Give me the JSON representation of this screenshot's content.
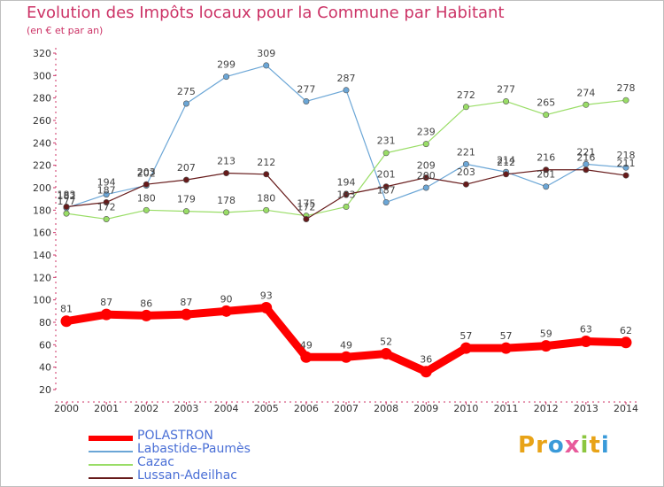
{
  "title": "Evolution des Impôts locaux pour la Commune par Habitant",
  "subtitle": "(en € et par an)",
  "logo": {
    "text": "Proxiti",
    "letters": [
      "P",
      "r",
      "o",
      "x",
      "i",
      "t",
      "i"
    ],
    "colors": [
      "#e8a317",
      "#e8a317",
      "#3a9ad9",
      "#e85a9b",
      "#8cc63f",
      "#e8a317",
      "#3a9ad9"
    ]
  },
  "colors": {
    "accent": "#cc3366",
    "legend_text": "#4a6fd6",
    "axis": "#333333"
  },
  "chart_data": {
    "type": "line",
    "title": "Evolution des Impôts locaux pour la Commune par Habitant",
    "subtitle": "(en € et par an)",
    "xlabel": "",
    "ylabel": "",
    "ylim": [
      20,
      320
    ],
    "ytick_step": 20,
    "yticks": [
      "20",
      "40",
      "60",
      "80",
      "100",
      "120",
      "140",
      "160",
      "180",
      "200",
      "220",
      "240",
      "260",
      "280",
      "300",
      "320"
    ],
    "categories": [
      "2000",
      "2001",
      "2002",
      "2003",
      "2004",
      "2005",
      "2006",
      "2007",
      "2008",
      "2009",
      "2010",
      "2011",
      "2012",
      "2013",
      "2014"
    ],
    "grid": false,
    "legend_position": "bottom-left",
    "series": [
      {
        "name": "POLASTRON",
        "color": "#ff0000",
        "values": [
          81,
          87,
          86,
          87,
          90,
          93,
          49,
          49,
          52,
          36,
          57,
          57,
          59,
          63,
          62
        ],
        "labels": [
          "81",
          "87",
          "86",
          "87",
          "90",
          "93",
          "49",
          "49",
          "52",
          "36",
          "57",
          "57",
          "59",
          "63",
          "62"
        ]
      },
      {
        "name": "Labastide-Paumès",
        "color": "#6ba6d6",
        "values": [
          182,
          194,
          202,
          275,
          299,
          309,
          277,
          287,
          187,
          200,
          221,
          214,
          201,
          221,
          218
        ],
        "labels": [
          "182",
          "194",
          "202",
          "275",
          "299",
          "309",
          "277",
          "287",
          "187",
          "200",
          "221",
          "214",
          "201",
          "221",
          "218"
        ]
      },
      {
        "name": "Cazac",
        "color": "#99dd66",
        "values": [
          177,
          172,
          180,
          179,
          178,
          180,
          175,
          183,
          231,
          239,
          272,
          277,
          265,
          274,
          278
        ],
        "labels": [
          "177",
          "172",
          "180",
          "179",
          "178",
          "180",
          "175",
          "183",
          "231",
          "239",
          "272",
          "277",
          "265",
          "274",
          "278"
        ]
      },
      {
        "name": "Lussan-Adeilhac",
        "color": "#661a1a",
        "values": [
          183,
          187,
          203,
          207,
          213,
          212,
          172,
          194,
          201,
          209,
          203,
          212,
          216,
          216,
          211
        ],
        "labels": [
          "183",
          "187",
          "203",
          "207",
          "213",
          "212",
          "172",
          "194",
          "201",
          "209",
          "203",
          "212",
          "216",
          "216",
          "211"
        ]
      }
    ]
  }
}
